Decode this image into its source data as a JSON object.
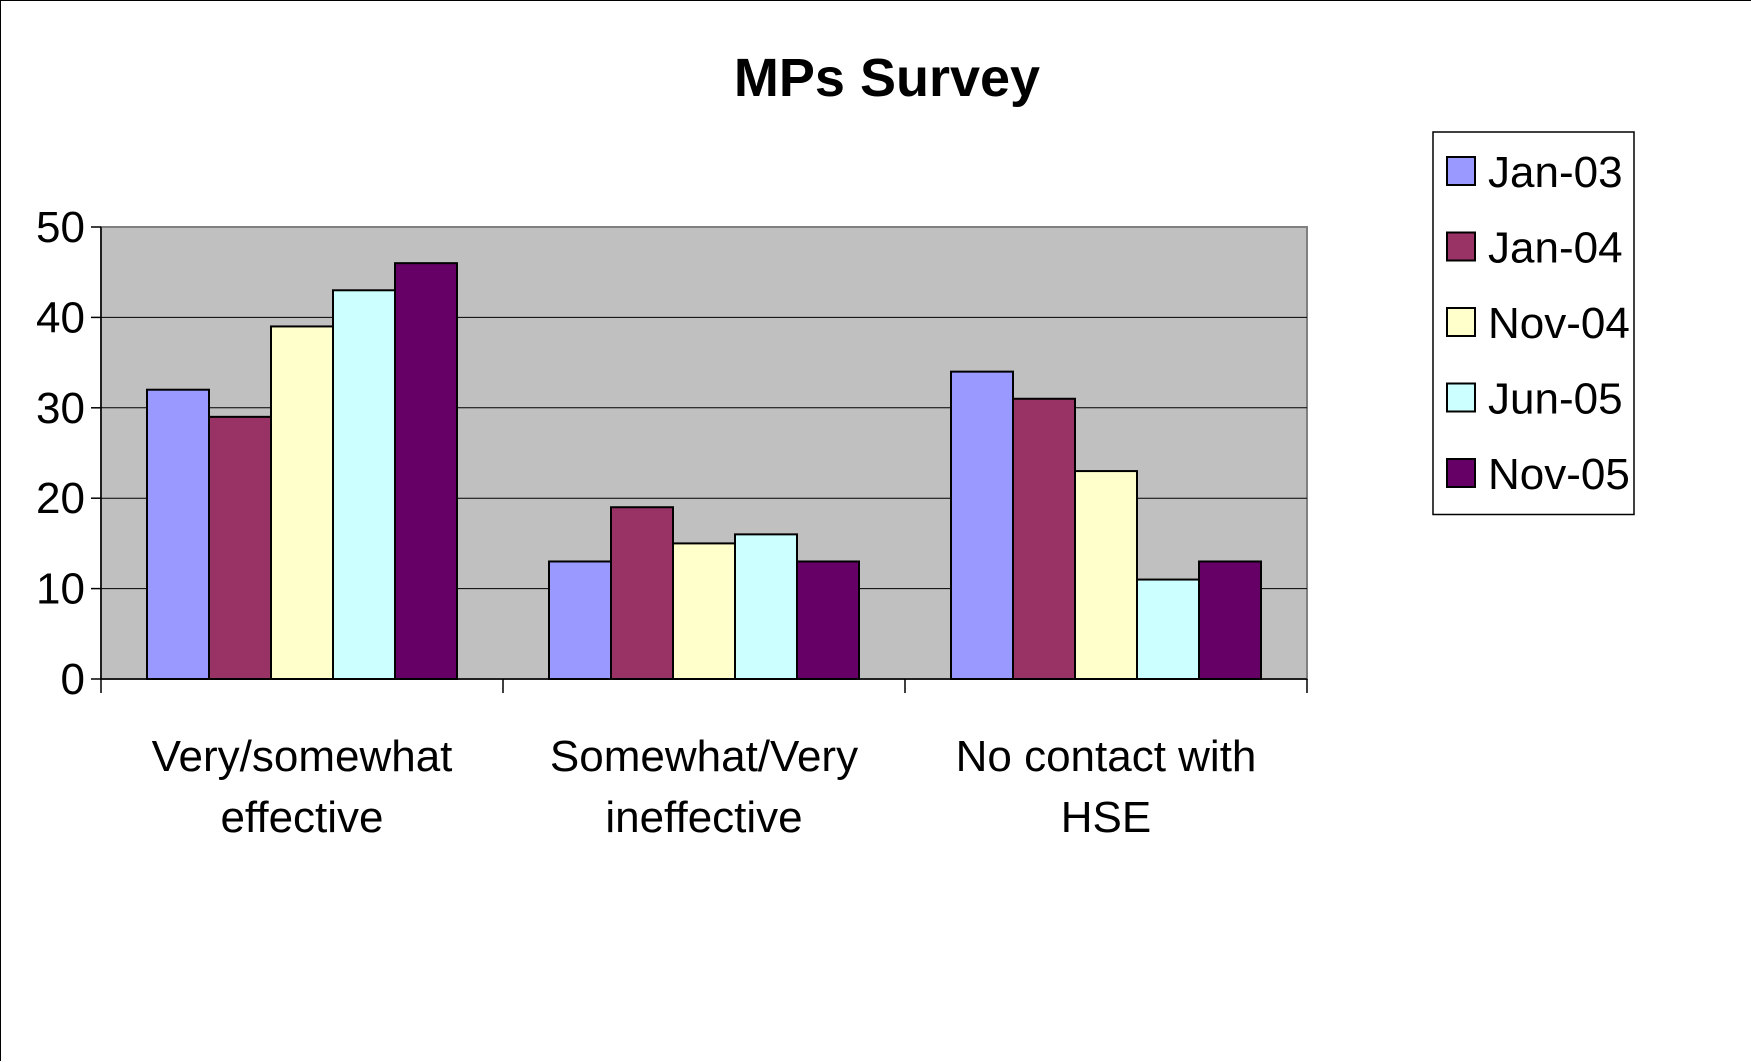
{
  "chart_data": {
    "type": "bar",
    "title": "MPs Survey",
    "xlabel": "",
    "ylabel": "",
    "ylim": [
      0,
      50
    ],
    "yticks": [
      0,
      10,
      20,
      30,
      40,
      50
    ],
    "grid": true,
    "legend_position": "right",
    "plot_background": "#C0C0C0",
    "categories": [
      [
        "Very/somewhat",
        "effective"
      ],
      [
        "Somewhat/Very",
        "ineffective"
      ],
      [
        "No contact with",
        "HSE"
      ]
    ],
    "series": [
      {
        "name": "Jan-03",
        "color": "#9999FF",
        "values": [
          32,
          13,
          34
        ]
      },
      {
        "name": "Jan-04",
        "color": "#993366",
        "values": [
          29,
          19,
          31
        ]
      },
      {
        "name": "Nov-04",
        "color": "#FFFFCC",
        "values": [
          39,
          15,
          23
        ]
      },
      {
        "name": "Jun-05",
        "color": "#CCFFFF",
        "values": [
          43,
          16,
          11
        ]
      },
      {
        "name": "Nov-05",
        "color": "#660066",
        "values": [
          46,
          13,
          13
        ]
      }
    ]
  }
}
